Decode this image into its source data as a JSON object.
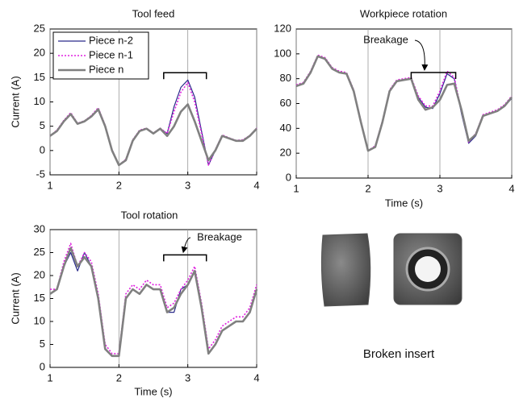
{
  "chart_data": [
    {
      "type": "line",
      "title": "Tool feed",
      "ylabel": "Current (A)",
      "x": [
        1.0,
        1.1,
        1.2,
        1.3,
        1.4,
        1.5,
        1.6,
        1.7,
        1.8,
        1.9,
        2.0,
        2.1,
        2.2,
        2.3,
        2.4,
        2.5,
        2.6,
        2.7,
        2.8,
        2.9,
        3.0,
        3.1,
        3.2,
        3.3,
        3.4,
        3.5,
        3.6,
        3.7,
        3.8,
        3.9,
        4.0
      ],
      "series": [
        {
          "name": "Piece n-2",
          "color": "#2a2a8a",
          "linestyle": "solid",
          "values": [
            3,
            4,
            6,
            7.5,
            5.5,
            6,
            7,
            8.3,
            5,
            0,
            -3,
            -2,
            2,
            4,
            4.5,
            3.5,
            4.5,
            3.5,
            9,
            13,
            14.5,
            11,
            4,
            -3,
            0,
            3,
            2.5,
            2,
            2,
            3,
            4.5
          ]
        },
        {
          "name": "Piece n-1",
          "color": "#e020e0",
          "linestyle": "dotted",
          "values": [
            3,
            4.2,
            6.2,
            7.8,
            5.6,
            6.1,
            7.2,
            8.8,
            5.2,
            0.2,
            -3,
            -1.8,
            2.2,
            4.2,
            4.6,
            3.6,
            4.6,
            3.5,
            8,
            12,
            14,
            10,
            3.5,
            -3,
            0.2,
            3.2,
            2.6,
            2.1,
            2.2,
            3.1,
            4.6
          ]
        },
        {
          "name": "Piece n",
          "color": "#808080",
          "linestyle": "solid",
          "values": [
            3,
            4,
            6,
            7.5,
            5.5,
            6,
            7,
            8.5,
            5,
            0,
            -3,
            -2,
            2,
            4,
            4.5,
            3.5,
            4.5,
            3,
            5,
            8,
            9.5,
            6,
            2,
            -2,
            0,
            3,
            2.5,
            2,
            2,
            3,
            4.5
          ]
        }
      ],
      "xlim": [
        1,
        4
      ],
      "xticks": [
        1,
        2,
        3,
        4
      ],
      "ylim": [
        -5,
        25
      ],
      "yticks": [
        -5,
        0,
        5,
        10,
        15,
        20,
        25
      ],
      "grid": "x",
      "legend": "upper left"
    },
    {
      "type": "line",
      "title": "Workpiece rotation",
      "xlabel": "Time (s)",
      "annotation": "Breakage",
      "x": [
        1.0,
        1.1,
        1.2,
        1.3,
        1.4,
        1.5,
        1.6,
        1.7,
        1.8,
        1.9,
        2.0,
        2.1,
        2.2,
        2.3,
        2.4,
        2.5,
        2.6,
        2.7,
        2.8,
        2.9,
        3.0,
        3.1,
        3.2,
        3.3,
        3.4,
        3.5,
        3.6,
        3.7,
        3.8,
        3.9,
        4.0
      ],
      "series": [
        {
          "name": "Piece n-2",
          "color": "#2a2a8a",
          "linestyle": "solid",
          "values": [
            74,
            76,
            85,
            98,
            96,
            88,
            85,
            84,
            70,
            45,
            22,
            25,
            45,
            70,
            78,
            79,
            80,
            65,
            57,
            56,
            68,
            84,
            80,
            52,
            28,
            34,
            50,
            52,
            54,
            58,
            64
          ]
        },
        {
          "name": "Piece n-1",
          "color": "#e020e0",
          "linestyle": "dotted",
          "values": [
            75,
            77,
            86,
            99,
            97,
            89,
            86,
            85,
            71,
            46,
            22,
            26,
            46,
            71,
            79,
            80,
            81,
            66,
            58,
            58,
            70,
            86,
            81,
            54,
            29,
            36,
            51,
            53,
            55,
            59,
            66
          ]
        },
        {
          "name": "Piece n",
          "color": "#808080",
          "linestyle": "solid",
          "values": [
            74,
            76,
            85,
            98,
            96,
            88,
            85,
            84,
            70,
            45,
            22,
            25,
            45,
            70,
            78,
            79,
            80,
            63,
            55,
            57,
            63,
            75,
            76,
            55,
            30,
            35,
            50,
            52,
            54,
            58,
            65
          ]
        }
      ],
      "xlim": [
        1,
        4
      ],
      "xticks": [
        1,
        2,
        3,
        4
      ],
      "ylim": [
        0,
        120
      ],
      "yticks": [
        0,
        20,
        40,
        60,
        80,
        100,
        120
      ],
      "grid": "x"
    },
    {
      "type": "line",
      "title": "Tool rotation",
      "xlabel": "Time (s)",
      "ylabel": "Current (A)",
      "annotation": "Breakage",
      "x": [
        1.0,
        1.1,
        1.2,
        1.3,
        1.4,
        1.5,
        1.6,
        1.7,
        1.8,
        1.9,
        2.0,
        2.1,
        2.2,
        2.3,
        2.4,
        2.5,
        2.6,
        2.7,
        2.8,
        2.9,
        3.0,
        3.1,
        3.2,
        3.3,
        3.4,
        3.5,
        3.6,
        3.7,
        3.8,
        3.9,
        4.0
      ],
      "series": [
        {
          "name": "Piece n-2",
          "color": "#2a2a8a",
          "linestyle": "solid",
          "values": [
            16,
            17,
            22,
            25,
            21,
            25,
            22,
            15,
            4,
            2.5,
            2.5,
            15,
            17,
            16,
            18,
            17,
            17,
            12,
            12,
            17,
            18,
            21,
            13,
            3,
            5,
            8,
            9,
            10,
            10,
            12,
            17
          ]
        },
        {
          "name": "Piece n-1",
          "color": "#e020e0",
          "linestyle": "dotted",
          "values": [
            17,
            17,
            23,
            27,
            22,
            25,
            23,
            16,
            5,
            3,
            3,
            16,
            18,
            17,
            19,
            18,
            18,
            13,
            14,
            17,
            19,
            22,
            14,
            4,
            6,
            9,
            10,
            11,
            11,
            13,
            18
          ]
        },
        {
          "name": "Piece n",
          "color": "#808080",
          "linestyle": "solid",
          "values": [
            16,
            17,
            22,
            26,
            22,
            24,
            22,
            15,
            4,
            2.5,
            2.5,
            15,
            17,
            16,
            18,
            17,
            17,
            12,
            13,
            16,
            18,
            21,
            13,
            3,
            5,
            8,
            9,
            10,
            10,
            12,
            17
          ]
        }
      ],
      "xlim": [
        1,
        4
      ],
      "xticks": [
        1,
        2,
        3,
        4
      ],
      "ylim": [
        0,
        30
      ],
      "yticks": [
        0,
        5,
        10,
        15,
        20,
        25,
        30
      ],
      "grid": "x"
    }
  ],
  "photo": {
    "caption": "Broken insert"
  }
}
